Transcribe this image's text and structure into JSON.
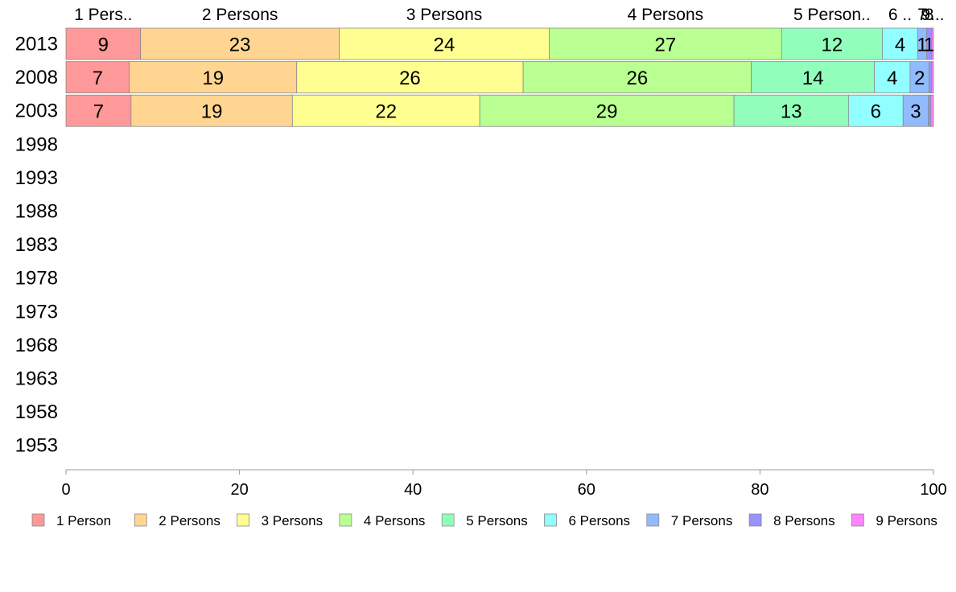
{
  "chart_data": {
    "type": "bar",
    "orientation": "horizontal",
    "stacked": true,
    "categories": [
      "2013",
      "2008",
      "2003",
      "1998",
      "1993",
      "1988",
      "1983",
      "1978",
      "1973",
      "1968",
      "1963",
      "1958",
      "1953"
    ],
    "xlim": [
      0,
      100
    ],
    "xticks": [
      "0",
      "20",
      "40",
      "60",
      "80",
      "100"
    ],
    "grid": false,
    "legend_position": "bottom",
    "top_labels": [
      "1 Pers..",
      "2 Persons",
      "3 Persons",
      "4 Persons",
      "5 Person..",
      "6 ..",
      "7",
      "8",
      "9..."
    ],
    "series": [
      {
        "name": "1 Person",
        "color": "#ff9898",
        "values": [
          8.6,
          7.3,
          7.5,
          null,
          null,
          null,
          null,
          null,
          null,
          null,
          null,
          null,
          null
        ],
        "labels": [
          "9",
          "7",
          "7"
        ]
      },
      {
        "name": "2 Persons",
        "color": "#ffd591",
        "values": [
          22.9,
          19.3,
          18.6,
          null,
          null,
          null,
          null,
          null,
          null,
          null,
          null,
          null,
          null
        ],
        "labels": [
          "23",
          "19",
          "19"
        ]
      },
      {
        "name": "3 Persons",
        "color": "#ffff91",
        "values": [
          24.2,
          26.1,
          21.6,
          null,
          null,
          null,
          null,
          null,
          null,
          null,
          null,
          null,
          null
        ],
        "labels": [
          "24",
          "26",
          "22"
        ]
      },
      {
        "name": "4 Persons",
        "color": "#b9ff91",
        "values": [
          26.8,
          26.3,
          29.3,
          null,
          null,
          null,
          null,
          null,
          null,
          null,
          null,
          null,
          null
        ],
        "labels": [
          "27",
          "26",
          "29"
        ]
      },
      {
        "name": "5 Persons",
        "color": "#91ffbb",
        "values": [
          11.6,
          14.2,
          13.2,
          null,
          null,
          null,
          null,
          null,
          null,
          null,
          null,
          null,
          null
        ],
        "labels": [
          "12",
          "14",
          "13"
        ]
      },
      {
        "name": "6 Persons",
        "color": "#91ffff",
        "values": [
          4.1,
          4.1,
          6.3,
          null,
          null,
          null,
          null,
          null,
          null,
          null,
          null,
          null,
          null
        ],
        "labels": [
          "4",
          "4",
          "6"
        ]
      },
      {
        "name": "7 Persons",
        "color": "#91bbff",
        "values": [
          1.0,
          2.2,
          2.9,
          null,
          null,
          null,
          null,
          null,
          null,
          null,
          null,
          null,
          null
        ],
        "labels": [
          "1",
          "2",
          "3"
        ]
      },
      {
        "name": "8 Persons",
        "color": "#9891ff",
        "values": [
          0.6,
          0.3,
          0.3,
          null,
          null,
          null,
          null,
          null,
          null,
          null,
          null,
          null,
          null
        ],
        "labels": [
          "1",
          "",
          ""
        ]
      },
      {
        "name": "9 Persons",
        "color": "#ff82ff",
        "values": [
          0.2,
          0.2,
          0.3,
          null,
          null,
          null,
          null,
          null,
          null,
          null,
          null,
          null,
          null
        ],
        "labels": [
          "",
          "",
          ""
        ]
      }
    ]
  }
}
